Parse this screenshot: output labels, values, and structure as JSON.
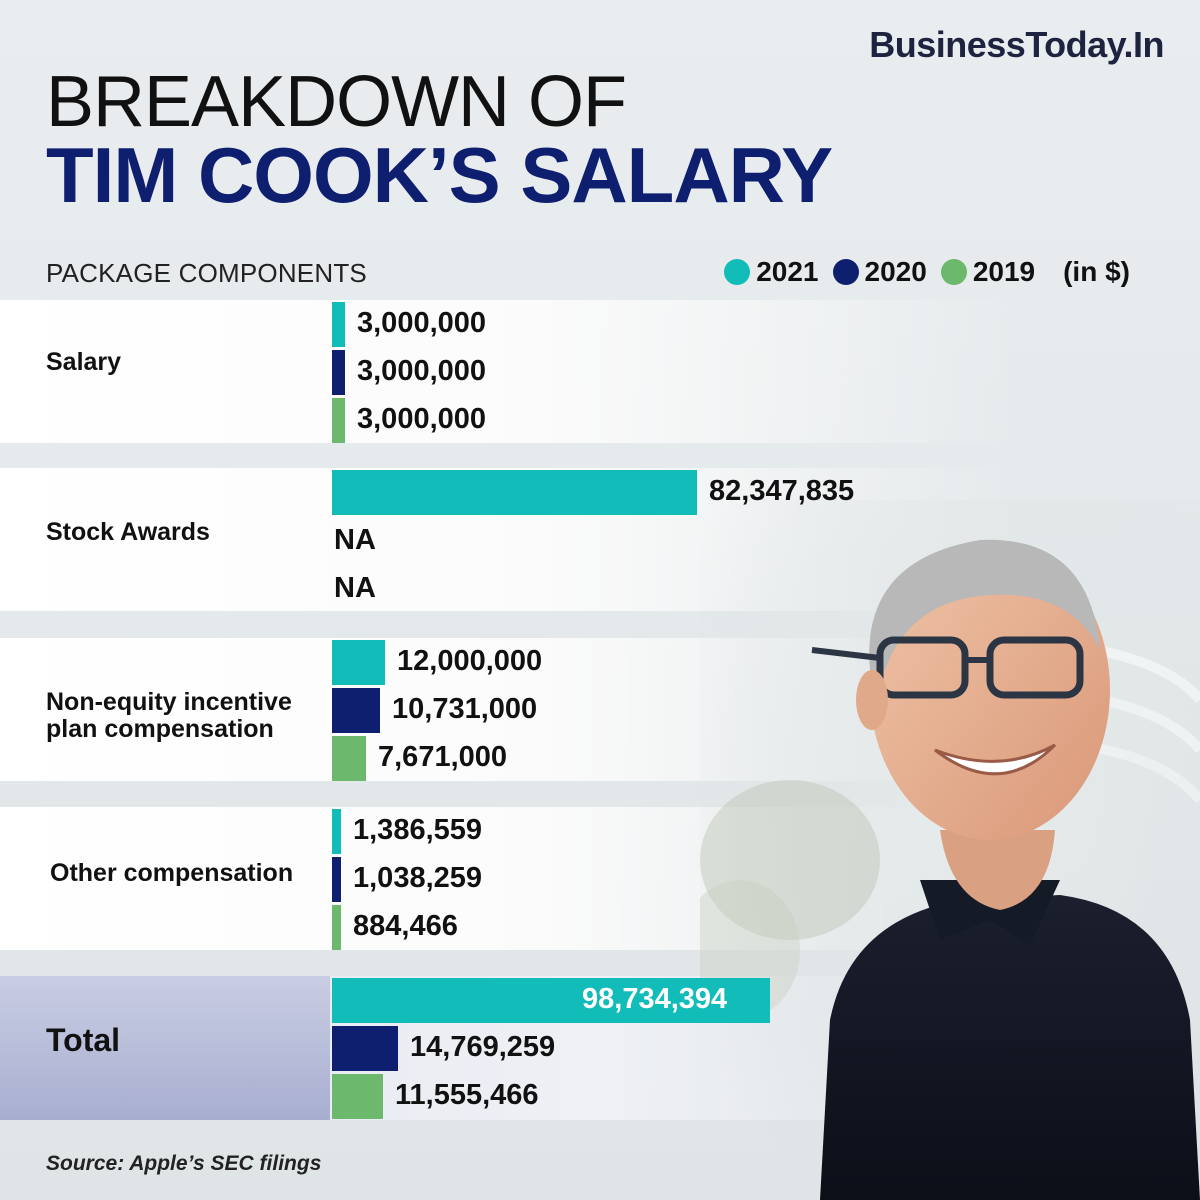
{
  "brand": "BusinessToday.In",
  "title_line1": "BREAKDOWN OF",
  "title_line2": "TIM COOK’S SALARY",
  "subheader": "PACKAGE COMPONENTS",
  "unit_note": "(in $)",
  "source": "Source: Apple’s SEC filings",
  "colors": {
    "y2021": "#12bcb8",
    "y2020": "#0e1f70",
    "y2019": "#6cb86c",
    "title": "#0e1f70"
  },
  "chart_data": {
    "type": "bar",
    "orientation": "horizontal",
    "unit": "$",
    "categories": [
      "Salary",
      "Stock Awards",
      "Non-equity incentive plan compensation",
      "Other compensation",
      "Total"
    ],
    "series": [
      {
        "name": "2021",
        "values": [
          3000000,
          82347835,
          12000000,
          1386559,
          98734394
        ]
      },
      {
        "name": "2020",
        "values": [
          3000000,
          null,
          10731000,
          1038259,
          14769259
        ]
      },
      {
        "name": "2019",
        "values": [
          3000000,
          null,
          7671000,
          884466,
          11555466
        ]
      }
    ],
    "labels": [
      [
        "3,000,000",
        "3,000,000",
        "3,000,000"
      ],
      [
        "82,347,835",
        "NA",
        "NA"
      ],
      [
        "12,000,000",
        "10,731,000",
        "7,671,000"
      ],
      [
        "1,386,559",
        "1,038,259",
        "884,466"
      ],
      [
        "98,734,394",
        "14,769,259",
        "11,555,466"
      ]
    ],
    "row_labels": [
      "Salary",
      "Stock Awards",
      "Non-equity incentive\nplan compensation",
      "Other compensation",
      "Total"
    ],
    "legend_position": "top-right"
  }
}
